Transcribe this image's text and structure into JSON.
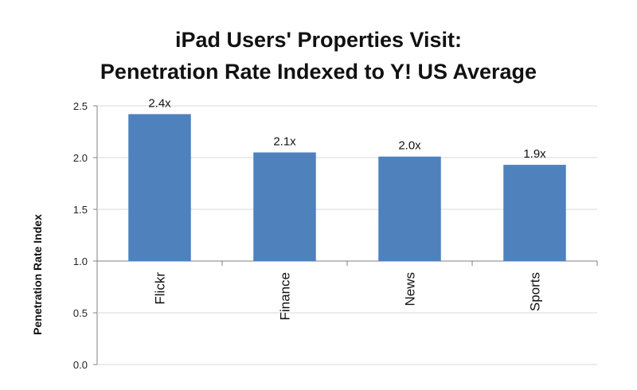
{
  "chart_data": {
    "type": "bar",
    "title": [
      "iPad Users' Properties Visit:",
      "Penetration Rate Indexed to Y! US Average"
    ],
    "xlabel": "",
    "ylabel": "Penetration Rate Index",
    "categories": [
      "Flickr",
      "Finance",
      "News",
      "Sports"
    ],
    "values": [
      2.42,
      2.05,
      2.01,
      1.93
    ],
    "data_labels": [
      "2.4x",
      "2.1x",
      "2.0x",
      "1.9x"
    ],
    "yticks": [
      "0.0",
      "0.5",
      "1.0",
      "1.5",
      "2.0",
      "2.5"
    ],
    "ylim": [
      0,
      2.5
    ],
    "category_axis_at": 1.0,
    "grid": true,
    "bar_color": "#4f81bd",
    "grid_color": "#d9d9d9"
  }
}
